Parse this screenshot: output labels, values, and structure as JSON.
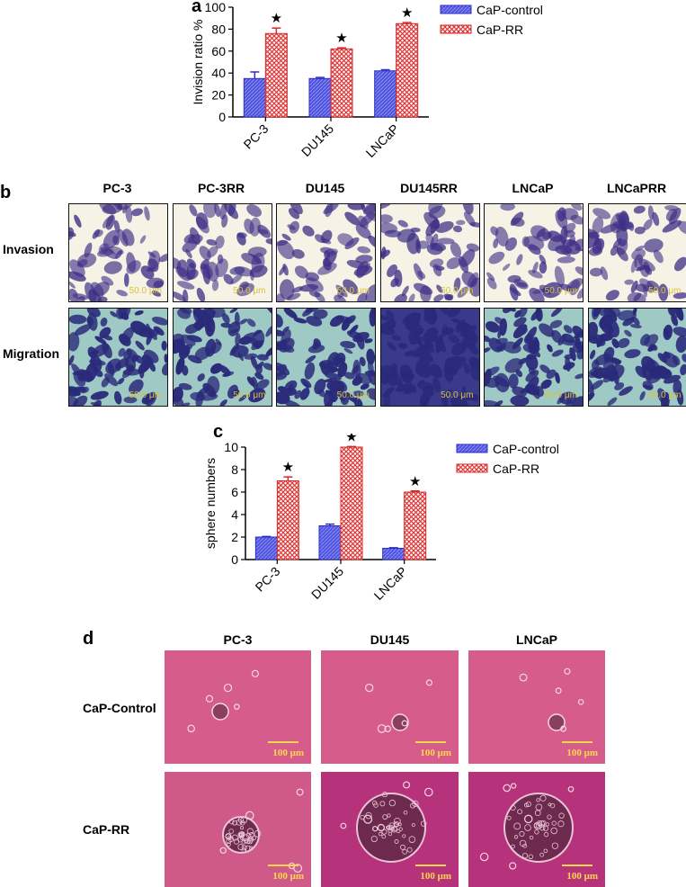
{
  "panels": {
    "a": {
      "letter": "a"
    },
    "b": {
      "letter": "b",
      "columns": [
        "PC-3",
        "PC-3RR",
        "DU145",
        "DU145RR",
        "LNCaP",
        "LNCaPRR"
      ],
      "rows": [
        "Invasion",
        "Migration"
      ],
      "scalebar": "50.0 μm"
    },
    "c": {
      "letter": "c"
    },
    "d": {
      "letter": "d",
      "columns": [
        "PC-3",
        "DU145",
        "LNCaP"
      ],
      "rows": [
        "CaP-Control",
        "CaP-RR"
      ],
      "scalebar": "100 μm"
    }
  },
  "chart_data": [
    {
      "type": "bar",
      "panel": "a",
      "categories": [
        "PC-3",
        "DU145",
        "LNCaP"
      ],
      "series": [
        {
          "name": "CaP-control",
          "values": [
            35,
            35,
            42
          ],
          "errors": [
            6,
            1,
            1
          ],
          "color": "#3b3fd6"
        },
        {
          "name": "CaP-RR",
          "values": [
            76,
            62,
            85
          ],
          "errors": [
            5,
            1,
            1
          ],
          "color": "#e03434"
        }
      ],
      "significance": [
        "★",
        "★",
        "★"
      ],
      "ylabel": "Invision ratio %",
      "ylim": [
        0,
        100
      ],
      "yticks": [
        0,
        20,
        40,
        60,
        80,
        100
      ],
      "legend": "top-right",
      "grid": false
    },
    {
      "type": "bar",
      "panel": "c",
      "categories": [
        "PC-3",
        "DU145",
        "LNCaP"
      ],
      "series": [
        {
          "name": "CaP-control",
          "values": [
            2,
            3,
            1
          ],
          "errors": [
            0.05,
            0.15,
            0.05
          ],
          "color": "#3b3fd6"
        },
        {
          "name": "CaP-RR",
          "values": [
            7,
            10,
            6
          ],
          "errors": [
            0.35,
            0.05,
            0.1
          ],
          "color": "#e03434"
        }
      ],
      "significance": [
        "★",
        "★",
        "★"
      ],
      "ylabel": "sphere numbers",
      "ylim": [
        0,
        10
      ],
      "yticks": [
        0,
        2,
        4,
        6,
        8,
        10
      ],
      "legend": "top-right",
      "grid": false
    }
  ]
}
